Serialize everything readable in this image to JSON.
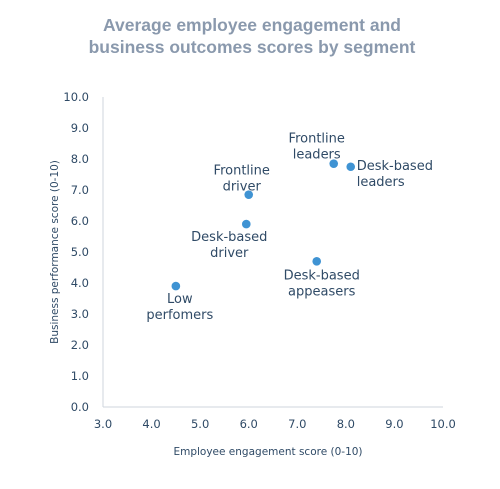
{
  "chart_data": {
    "type": "scatter",
    "title_lines": [
      "Average employee engagement and",
      "business outcomes scores by segment"
    ],
    "xlabel": "Employee engagement score (0-10)",
    "ylabel": "Business performance score (0-10)",
    "xlim": [
      3.0,
      10.0
    ],
    "ylim": [
      0.0,
      10.0
    ],
    "x_ticks": [
      "3.0",
      "4.0",
      "5.0",
      "6.0",
      "7.0",
      "8.0",
      "9.0",
      "10.0"
    ],
    "y_ticks": [
      "0.0",
      "1.0",
      "2.0",
      "3.0",
      "4.0",
      "5.0",
      "6.0",
      "7.0",
      "8.0",
      "9.0",
      "10.0"
    ],
    "grid": false,
    "point_color": "#3f93d3",
    "points": [
      {
        "label_lines": [
          "Low",
          "perfomers"
        ],
        "x": 4.5,
        "y": 3.9
      },
      {
        "label_lines": [
          "Frontline",
          "driver"
        ],
        "x": 6.0,
        "y": 6.85
      },
      {
        "label_lines": [
          "Desk-based",
          "driver"
        ],
        "x": 5.95,
        "y": 5.9
      },
      {
        "label_lines": [
          "Desk-based",
          "appeasers"
        ],
        "x": 7.4,
        "y": 4.7
      },
      {
        "label_lines": [
          "Frontline",
          "leaders"
        ],
        "x": 7.75,
        "y": 7.85
      },
      {
        "label_lines": [
          "Desk-based",
          "leaders"
        ],
        "x": 8.1,
        "y": 7.75
      }
    ]
  }
}
